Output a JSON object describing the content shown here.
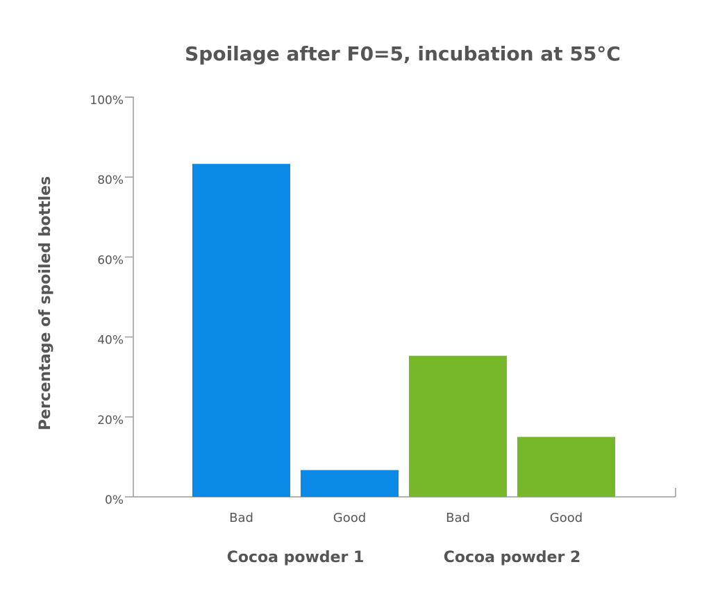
{
  "chart_data": {
    "type": "bar",
    "title": "Spoilage after F0=5, incubation at 55°C",
    "ylabel": "Percentage of spoiled bottles",
    "xlabel": "",
    "ylim": [
      0,
      100
    ],
    "yticks": [
      "0%",
      "20%",
      "40%",
      "60%",
      "80%",
      "100%"
    ],
    "ytick_values": [
      0,
      20,
      40,
      60,
      80,
      100
    ],
    "grid": false,
    "groups": [
      {
        "name": "Cocoa powder 1",
        "color": "#0a8ae6",
        "categories": [
          "Bad",
          "Good"
        ],
        "values": [
          83.3,
          6.7
        ]
      },
      {
        "name": "Cocoa powder 2",
        "color": "#76b82a",
        "categories": [
          "Bad",
          "Good"
        ],
        "values": [
          35.3,
          15.0
        ]
      }
    ]
  }
}
